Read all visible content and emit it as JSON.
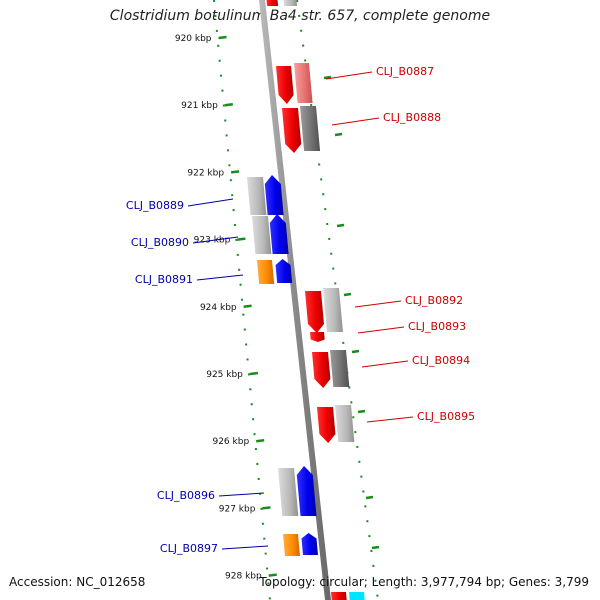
{
  "title": "Clostridium botulinum Ba4 str. 657, complete genome",
  "footer": {
    "accession": "Accession: NC_012658",
    "summary": "Topology: circular; Length: 3,977,794 bp; Genes: 3,799"
  },
  "colors": {
    "forward": "#ee0000",
    "reverse": "#0000ee",
    "forward_label": "#cc0000",
    "reverse_label": "#0000aa",
    "orange": "#ff8c00",
    "gray": "#b0b0b0",
    "dark_gray": "#707070",
    "ruler": "#1a8c1a",
    "axis": "#888888",
    "cyan": "#00e5ff"
  },
  "ticks": [
    "920 kbp",
    "921 kbp",
    "922 kbp",
    "923 kbp",
    "924 kbp",
    "925 kbp",
    "926 kbp",
    "927 kbp",
    "928 kbp"
  ],
  "genes_forward": [
    "CLJ_B0887",
    "CLJ_B0888",
    "CLJ_B0892",
    "CLJ_B0893",
    "CLJ_B0894",
    "CLJ_B0895"
  ],
  "genes_reverse": [
    "CLJ_B0889",
    "CLJ_B0890",
    "CLJ_B0891",
    "CLJ_B0896",
    "CLJ_B0897"
  ]
}
